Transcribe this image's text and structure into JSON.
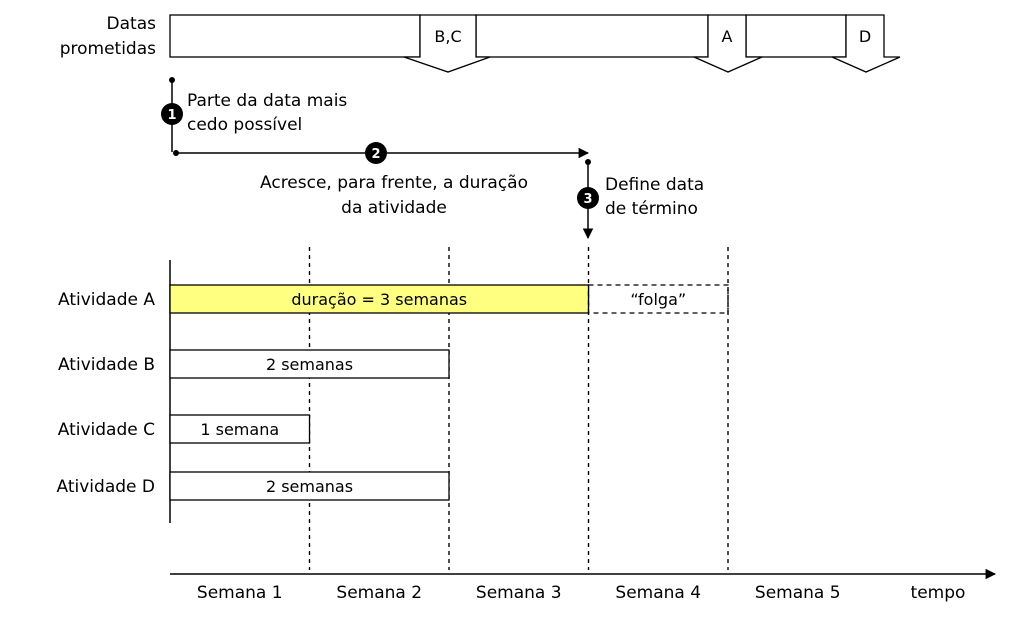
{
  "header": {
    "label_line1": "Datas",
    "label_line2": "prometidas",
    "promise_markers": [
      "B,C",
      "A",
      "D"
    ]
  },
  "steps": [
    {
      "number": "1",
      "line1": "Parte da data mais",
      "line2": "cedo possível"
    },
    {
      "number": "2",
      "line1": "Acresce, para frente, a duração",
      "line2": "da atividade"
    },
    {
      "number": "3",
      "line1": "Define data",
      "line2": "de término"
    }
  ],
  "activities": [
    {
      "label": "Atividade A",
      "bar_text": "duração = 3 semanas",
      "weeks": 3,
      "fill": "#ffff80"
    },
    {
      "label": "Atividade B",
      "bar_text": "2 semanas",
      "weeks": 2,
      "fill": "#ffffff"
    },
    {
      "label": "Atividade C",
      "bar_text": "1 semana",
      "weeks": 1,
      "fill": "#ffffff"
    },
    {
      "label": "Atividade D",
      "bar_text": "2 semanas",
      "weeks": 2,
      "fill": "#ffffff"
    }
  ],
  "slack": {
    "text": "“folga”",
    "weeks": 1
  },
  "axis": {
    "weeks": [
      "Semana 1",
      "Semana 2",
      "Semana 3",
      "Semana 4",
      "Semana 5"
    ],
    "label": "tempo"
  },
  "colors": {
    "highlight": "#ffff80",
    "line": "#000000"
  }
}
